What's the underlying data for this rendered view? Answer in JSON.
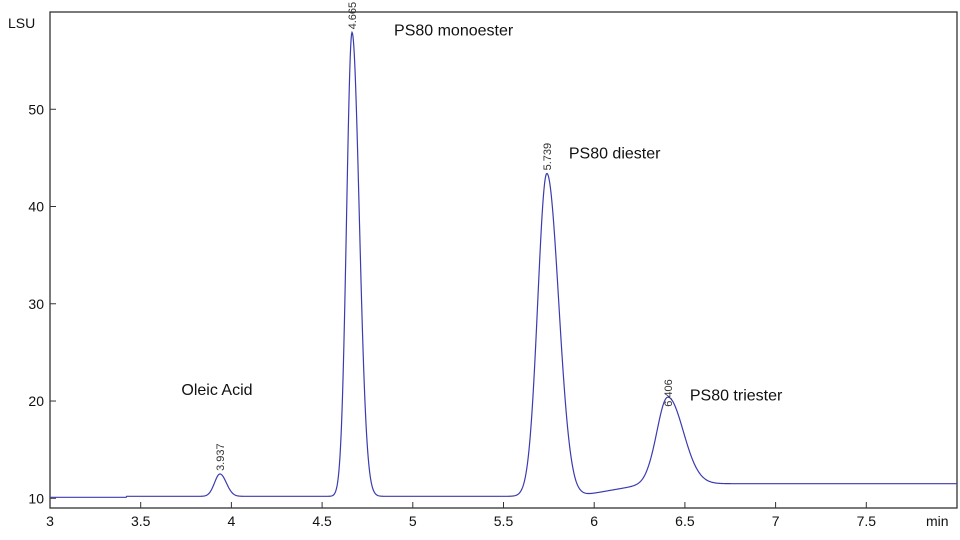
{
  "chart_data": {
    "type": "line",
    "title": "",
    "xlabel": "min",
    "ylabel": "LSU",
    "xlim": [
      3,
      8.0
    ],
    "ylim": [
      9.0,
      60.0
    ],
    "x_ticks": [
      "3",
      "3.5",
      "4",
      "4.5",
      "5",
      "5.5",
      "6",
      "6.5",
      "7",
      "7.5"
    ],
    "y_ticks": [
      "10",
      "20",
      "30",
      "40",
      "50"
    ],
    "grid": false,
    "line_color": "#3b3bb0",
    "baseline": 10.1,
    "peaks": [
      {
        "name": "Oleic Acid",
        "rt": 3.937,
        "rt_label": "3.937",
        "height": 12.4
      },
      {
        "name": "PS80 monoester",
        "rt": 4.665,
        "rt_label": "4.665",
        "height": 57.8
      },
      {
        "name": "PS80 diester",
        "rt": 5.739,
        "rt_label": "5.739",
        "height": 43.3
      },
      {
        "name": "PS80 triester",
        "rt": 6.406,
        "rt_label": "6.406",
        "height": 19.0
      }
    ]
  }
}
